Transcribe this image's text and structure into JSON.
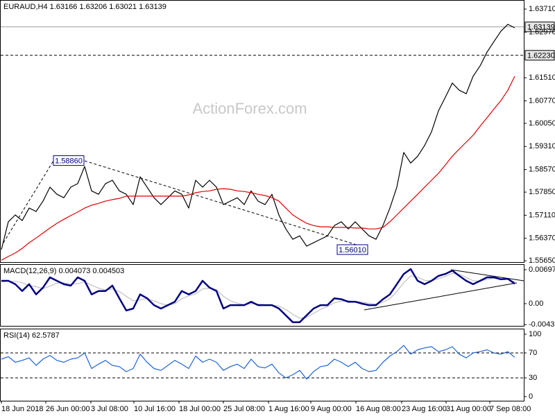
{
  "chart_data": [
    {
      "type": "line",
      "title": "EURAUD,H4 1.63166 1.63206 1.63021 1.63139",
      "watermark": "ActionForex.com",
      "ylim": [
        1.5561,
        1.64
      ],
      "yticks": [
        {
          "value": 1.6371,
          "label": "1.63710"
        },
        {
          "value": 1.6297,
          "label": "1.62970"
        },
        {
          "value": 1.6151,
          "label": "1.61510"
        },
        {
          "value": 1.6077,
          "label": "1.60770"
        },
        {
          "value": 1.6005,
          "label": "1.60050"
        },
        {
          "value": 1.5931,
          "label": "1.59310"
        },
        {
          "value": 1.5857,
          "label": "1.58570"
        },
        {
          "value": 1.5785,
          "label": "1.57850"
        },
        {
          "value": 1.5711,
          "label": "1.57110"
        },
        {
          "value": 1.5637,
          "label": "1.56370"
        },
        {
          "value": 1.5565,
          "label": "1.55650"
        }
      ],
      "levels": [
        {
          "value": 1.63139,
          "label": "1.63139",
          "style": "solid"
        },
        {
          "value": 1.6223,
          "label": "1.62230",
          "style": "dashed"
        }
      ],
      "annotations": [
        {
          "value": 1.5886,
          "label": "1.58860"
        },
        {
          "value": 1.5601,
          "label": "1.56010"
        }
      ],
      "series": [
        {
          "color": "#000000",
          "values": [
            1.5601,
            1.569,
            1.5712,
            1.5694,
            1.5734,
            1.5723,
            1.5756,
            1.5801,
            1.5778,
            1.5767,
            1.5801,
            1.5812,
            1.5867,
            1.5789,
            1.5778,
            1.5812,
            1.5823,
            1.5789,
            1.5778,
            1.5745,
            1.5834,
            1.5801,
            1.5767,
            1.5745,
            1.5767,
            1.5789,
            1.5778,
            1.5734,
            1.5823,
            1.5801,
            1.5823,
            1.5801,
            1.5745,
            1.5756,
            1.5767,
            1.5745,
            1.5789,
            1.5756,
            1.5745,
            1.5778,
            1.5712,
            1.5667,
            1.5634,
            1.5645,
            1.5612,
            1.5623,
            1.5634,
            1.5645,
            1.5678,
            1.569,
            1.5667,
            1.569,
            1.5667,
            1.5645,
            1.5634,
            1.5678,
            1.5734,
            1.5801,
            1.5912,
            1.5878,
            1.59,
            1.5934,
            1.5978,
            1.6045,
            1.6089,
            1.6134,
            1.6111,
            1.61,
            1.6156,
            1.6189,
            1.6233,
            1.6267,
            1.63,
            1.6322,
            1.6311
          ]
        },
        {
          "color": "#e00000",
          "values": [
            1.5567,
            1.5579,
            1.559,
            1.5605,
            1.5623,
            1.5638,
            1.5654,
            1.567,
            1.5685,
            1.5698,
            1.571,
            1.5721,
            1.5734,
            1.5743,
            1.5749,
            1.5756,
            1.5761,
            1.5765,
            1.5772,
            1.5772,
            1.5772,
            1.5772,
            1.5772,
            1.5772,
            1.5772,
            1.5772,
            1.5772,
            1.5776,
            1.5783,
            1.5787,
            1.5789,
            1.5794,
            1.5796,
            1.5794,
            1.5789,
            1.5787,
            1.5783,
            1.5778,
            1.5774,
            1.5767,
            1.5756,
            1.5734,
            1.5712,
            1.5698,
            1.5685,
            1.5678,
            1.5674,
            1.5674,
            1.5672,
            1.5672,
            1.5672,
            1.567,
            1.567,
            1.5667,
            1.5667,
            1.5672,
            1.569,
            1.5712,
            1.5734,
            1.5756,
            1.5778,
            1.5801,
            1.5823,
            1.5845,
            1.5872,
            1.59,
            1.5923,
            1.5945,
            1.5967,
            1.5996,
            1.6023,
            1.6051,
            1.6078,
            1.6111,
            1.6156
          ]
        }
      ]
    },
    {
      "type": "line",
      "title": "MACD(12,26,9) 0.004073 0.004503",
      "ylim": [
        -0.00456,
        0.00811
      ],
      "yticks": [
        0.006976,
        {
          "value": 0,
          "label": "0.00"
        },
        -0.00431
      ],
      "series": [
        {
          "color": "#c0c0c0",
          "values": [
            0.0045,
            0.0046,
            0.0046,
            0.0043,
            0.0037,
            0.0035,
            0.0031,
            0.0036,
            0.0042,
            0.0043,
            0.004,
            0.0041,
            0.0045,
            0.0038,
            0.0032,
            0.0028,
            0.003,
            0.0025,
            0.0015,
            0.0006,
            0.0008,
            0.001,
            0.0006,
            0.0,
            -0.0003,
            0.0,
            0.001,
            0.0016,
            0.002,
            0.003,
            0.0032,
            0.0029,
            0.0015,
            0.0006,
            0.0001,
            -0.0002,
            0.0,
            -0.0001,
            -0.0002,
            -0.0003,
            -0.0005,
            -0.0012,
            -0.0022,
            -0.003,
            -0.0028,
            -0.002,
            -0.0012,
            -0.0006,
            0.0002,
            0.0005,
            0.0006,
            0.0005,
            0.0003,
            0.0001,
            -0.0001,
            0.0003,
            0.001,
            0.0025,
            0.0043,
            0.0057,
            0.0054,
            0.0048,
            0.0047,
            0.0051,
            0.0056,
            0.0062,
            0.006,
            0.0054,
            0.0047,
            0.0046,
            0.005,
            0.0052,
            0.0051,
            0.005,
            0.0045
          ]
        },
        {
          "color": "#000080",
          "width": 2.5,
          "values": [
            0.0047,
            0.0047,
            0.004,
            0.0026,
            0.004,
            0.0019,
            0.0033,
            0.0054,
            0.0047,
            0.004,
            0.0037,
            0.0054,
            0.0047,
            0.0019,
            0.0026,
            0.0026,
            0.0037,
            0.0011,
            -0.0014,
            -0.001,
            0.0019,
            0.0011,
            -0.0003,
            -0.001,
            -0.0003,
            0.0004,
            0.0026,
            0.0019,
            0.0026,
            0.0047,
            0.0033,
            0.0026,
            -0.001,
            -0.0003,
            -0.0003,
            -0.0003,
            0.0004,
            -0.0003,
            -0.0003,
            -0.0003,
            -0.001,
            -0.0024,
            -0.0038,
            -0.0038,
            -0.0024,
            -0.001,
            -0.0003,
            -0.0003,
            0.0011,
            0.0009,
            0.0004,
            0.0004,
            0,
            -0.0003,
            -0.0003,
            0.0009,
            0.0019,
            0.004,
            0.0061,
            0.0071,
            0.0047,
            0.004,
            0.0047,
            0.0057,
            0.0061,
            0.0068,
            0.0057,
            0.0047,
            0.004,
            0.0047,
            0.0054,
            0.0054,
            0.005,
            0.0051,
            0.0041
          ]
        }
      ]
    },
    {
      "type": "line",
      "title": "RSI(14) 62.5787",
      "ylim": [
        -6.7,
        108.9
      ],
      "yticks": [
        100,
        70,
        30,
        0
      ],
      "levels": [
        70,
        30
      ],
      "xlim": [
        -0.2,
        75.3
      ],
      "xticks": [
        {
          "value": 0,
          "label": "18 Jun 2018"
        },
        {
          "value": 6.4,
          "label": "26 Jun 00:00"
        },
        {
          "value": 12.9,
          "label": "3 Jul 08:00"
        },
        {
          "value": 19.1,
          "label": "10 Jul 16:00"
        },
        {
          "value": 25.6,
          "label": "18 Jul 00:00"
        },
        {
          "value": 32,
          "label": "25 Jul 08:00"
        },
        {
          "value": 38.5,
          "label": "1 Aug 16:00"
        },
        {
          "value": 44.6,
          "label": "9 Aug 00:00"
        },
        {
          "value": 51.1,
          "label": "16 Aug 08:00"
        },
        {
          "value": 57.7,
          "label": "23 Aug 16:00"
        },
        {
          "value": 64.1,
          "label": "31 Aug 00:00"
        },
        {
          "value": 70.4,
          "label": "7 Sep 08:00"
        }
      ],
      "series": [
        {
          "color": "#1e64d2",
          "values": [
            60,
            64,
            55,
            58,
            62,
            50,
            60,
            66,
            58,
            55,
            60,
            62,
            70,
            45,
            52,
            58,
            50,
            48,
            40,
            45,
            68,
            55,
            45,
            42,
            50,
            58,
            52,
            45,
            65,
            55,
            60,
            55,
            42,
            48,
            52,
            45,
            60,
            48,
            46,
            52,
            38,
            30,
            35,
            42,
            28,
            40,
            48,
            50,
            60,
            55,
            48,
            55,
            45,
            40,
            42,
            55,
            65,
            72,
            82,
            68,
            75,
            78,
            80,
            72,
            75,
            80,
            68,
            62,
            70,
            72,
            75,
            70,
            68,
            72,
            63
          ]
        }
      ]
    }
  ]
}
